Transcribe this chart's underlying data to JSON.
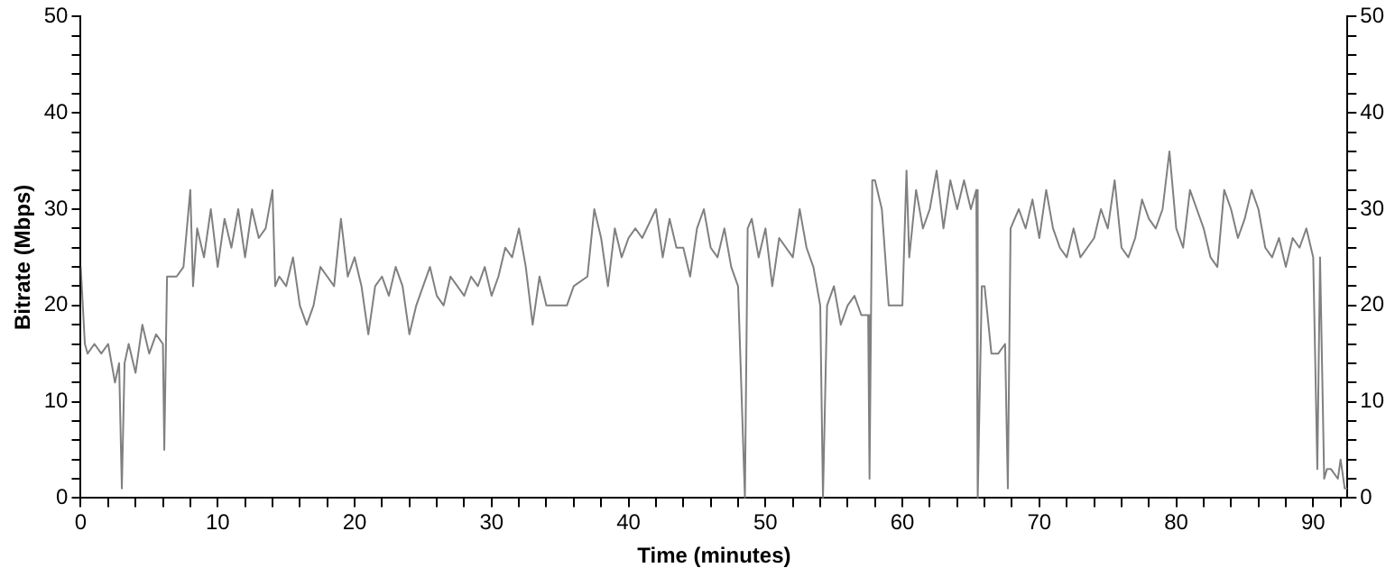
{
  "chart_data": {
    "type": "line",
    "xlabel": "Time (minutes)",
    "ylabel": "Bitrate (Mbps)",
    "xlim": [
      0,
      92.5
    ],
    "ylim": [
      0,
      50
    ],
    "y2lim": [
      0,
      50
    ],
    "xticks": [
      0,
      {
        "value": 2,
        "label": null
      },
      {
        "value": 4,
        "label": null
      },
      {
        "value": 6,
        "label": null
      },
      {
        "value": 8,
        "label": null
      },
      10,
      {
        "value": 12,
        "label": null
      },
      {
        "value": 14,
        "label": null
      },
      {
        "value": 16,
        "label": null
      },
      {
        "value": 18,
        "label": null
      },
      20,
      {
        "value": 22,
        "label": null
      },
      {
        "value": 24,
        "label": null
      },
      {
        "value": 26,
        "label": null
      },
      {
        "value": 28,
        "label": null
      },
      30,
      {
        "value": 32,
        "label": null
      },
      {
        "value": 34,
        "label": null
      },
      {
        "value": 36,
        "label": null
      },
      {
        "value": 38,
        "label": null
      },
      40,
      {
        "value": 42,
        "label": null
      },
      {
        "value": 44,
        "label": null
      },
      {
        "value": 46,
        "label": null
      },
      {
        "value": 48,
        "label": null
      },
      50,
      {
        "value": 52,
        "label": null
      },
      {
        "value": 54,
        "label": null
      },
      {
        "value": 56,
        "label": null
      },
      {
        "value": 58,
        "label": null
      },
      60,
      {
        "value": 62,
        "label": null
      },
      {
        "value": 64,
        "label": null
      },
      {
        "value": 66,
        "label": null
      },
      {
        "value": 68,
        "label": null
      },
      70,
      {
        "value": 72,
        "label": null
      },
      {
        "value": 74,
        "label": null
      },
      {
        "value": 76,
        "label": null
      },
      {
        "value": 78,
        "label": null
      },
      80,
      {
        "value": 82,
        "label": null
      },
      {
        "value": 84,
        "label": null
      },
      {
        "value": 86,
        "label": null
      },
      {
        "value": 88,
        "label": null
      },
      90,
      {
        "value": 92,
        "label": null
      }
    ],
    "yticks": [
      0,
      {
        "value": 2,
        "label": null
      },
      {
        "value": 4,
        "label": null
      },
      {
        "value": 6,
        "label": null
      },
      {
        "value": 8,
        "label": null
      },
      10,
      {
        "value": 12,
        "label": null
      },
      {
        "value": 14,
        "label": null
      },
      {
        "value": 16,
        "label": null
      },
      {
        "value": 18,
        "label": null
      },
      20,
      {
        "value": 22,
        "label": null
      },
      {
        "value": 24,
        "label": null
      },
      {
        "value": 26,
        "label": null
      },
      {
        "value": 28,
        "label": null
      },
      30,
      {
        "value": 32,
        "label": null
      },
      {
        "value": 34,
        "label": null
      },
      {
        "value": 36,
        "label": null
      },
      {
        "value": 38,
        "label": null
      },
      40,
      {
        "value": 42,
        "label": null
      },
      {
        "value": 44,
        "label": null
      },
      {
        "value": 46,
        "label": null
      },
      {
        "value": 48,
        "label": null
      },
      50
    ],
    "y2ticks": [
      0,
      {
        "value": 2,
        "label": null
      },
      {
        "value": 4,
        "label": null
      },
      {
        "value": 6,
        "label": null
      },
      {
        "value": 8,
        "label": null
      },
      10,
      {
        "value": 12,
        "label": null
      },
      {
        "value": 14,
        "label": null
      },
      {
        "value": 16,
        "label": null
      },
      {
        "value": 18,
        "label": null
      },
      20,
      {
        "value": 22,
        "label": null
      },
      {
        "value": 24,
        "label": null
      },
      {
        "value": 26,
        "label": null
      },
      {
        "value": 28,
        "label": null
      },
      30,
      {
        "value": 32,
        "label": null
      },
      {
        "value": 34,
        "label": null
      },
      {
        "value": 36,
        "label": null
      },
      {
        "value": 38,
        "label": null
      },
      40,
      {
        "value": 42,
        "label": null
      },
      {
        "value": 44,
        "label": null
      },
      {
        "value": 46,
        "label": null
      },
      {
        "value": 48,
        "label": null
      },
      50
    ],
    "grid": false,
    "legend": false,
    "marker": "none",
    "line_style": "solid",
    "series": [
      {
        "color": "#808080",
        "x": [
          0,
          0.3,
          0.5,
          1,
          1.5,
          2,
          2.5,
          2.8,
          3,
          3.2,
          3.5,
          4,
          4.5,
          5,
          5.5,
          6,
          6.1,
          6.3,
          7,
          7.5,
          8,
          8.2,
          8.5,
          9,
          9.5,
          10,
          10.5,
          11,
          11.5,
          12,
          12.5,
          13,
          13.5,
          14,
          14.2,
          14.5,
          15,
          15.5,
          16,
          16.5,
          17,
          17.5,
          18,
          18.5,
          19,
          19.5,
          20,
          20.5,
          21,
          21.5,
          22,
          22.5,
          23,
          23.5,
          24,
          24.5,
          25,
          25.5,
          26,
          26.5,
          27,
          27.5,
          28,
          28.5,
          29,
          29.5,
          30,
          30.5,
          31,
          31.5,
          32,
          32.5,
          33,
          33.5,
          34,
          34.5,
          35,
          35.5,
          36,
          37,
          37.5,
          38,
          38.5,
          39,
          39.5,
          40,
          40.5,
          41,
          42,
          42.5,
          43,
          43.5,
          44,
          44.5,
          45,
          45.5,
          46,
          46.5,
          47,
          47.5,
          48,
          48.5,
          48.7,
          49,
          49.5,
          50,
          50.5,
          51,
          52,
          52.5,
          53,
          53.5,
          54,
          54.2,
          54.5,
          55,
          55.5,
          56,
          56.5,
          57,
          57.5,
          57.6,
          57.8,
          58,
          58.5,
          59,
          59.5,
          60,
          60.3,
          60.5,
          61,
          61.5,
          62,
          62.5,
          63,
          63.5,
          64,
          64.5,
          65,
          65.4,
          65.5,
          65.8,
          66,
          66.5,
          67,
          67.5,
          67.7,
          67.9,
          68.5,
          69,
          69.5,
          70,
          70.5,
          71,
          71.5,
          72,
          72.5,
          73,
          73.5,
          74,
          74.5,
          75,
          75.5,
          76,
          76.5,
          77,
          77.5,
          78,
          78.5,
          79,
          79.5,
          80,
          80.5,
          81,
          81.5,
          82,
          82.5,
          83,
          83.5,
          84,
          84.5,
          85,
          85.5,
          86,
          86.5,
          87,
          87.5,
          88,
          88.5,
          89,
          89.5,
          90,
          90.3,
          90.5,
          90.8,
          91,
          91.3,
          91.8,
          92,
          92.3,
          92.5
        ],
        "values": [
          24,
          16,
          15,
          16,
          15,
          16,
          12,
          14,
          1,
          14,
          16,
          13,
          18,
          15,
          17,
          16,
          5,
          23,
          23,
          24,
          32,
          22,
          28,
          25,
          30,
          24,
          29,
          26,
          30,
          25,
          30,
          27,
          28,
          32,
          22,
          23,
          22,
          25,
          20,
          18,
          20,
          24,
          23,
          22,
          29,
          23,
          25,
          22,
          17,
          22,
          23,
          21,
          24,
          22,
          17,
          20,
          22,
          24,
          21,
          20,
          23,
          22,
          21,
          23,
          22,
          24,
          21,
          23,
          26,
          25,
          28,
          24,
          18,
          23,
          20,
          20,
          20,
          20,
          22,
          23,
          30,
          27,
          22,
          28,
          25,
          27,
          28,
          27,
          30,
          25,
          29,
          26,
          26,
          23,
          28,
          30,
          26,
          25,
          28,
          24,
          22,
          0,
          28,
          29,
          25,
          28,
          22,
          27,
          25,
          30,
          26,
          24,
          20,
          0,
          20,
          22,
          18,
          20,
          21,
          19,
          19,
          2,
          33,
          33,
          30,
          20,
          20,
          20,
          34,
          25,
          32,
          28,
          30,
          34,
          28,
          33,
          30,
          33,
          30,
          32,
          0,
          22,
          22,
          15,
          15,
          16,
          1,
          28,
          30,
          28,
          31,
          27,
          32,
          28,
          26,
          25,
          28,
          25,
          26,
          27,
          30,
          28,
          33,
          26,
          25,
          27,
          31,
          29,
          28,
          30,
          36,
          28,
          26,
          32,
          30,
          28,
          25,
          24,
          32,
          30,
          27,
          29,
          32,
          30,
          26,
          25,
          27,
          24,
          27,
          26,
          28,
          25,
          3,
          25,
          2,
          3,
          3,
          2,
          4,
          1,
          1
        ]
      }
    ]
  }
}
